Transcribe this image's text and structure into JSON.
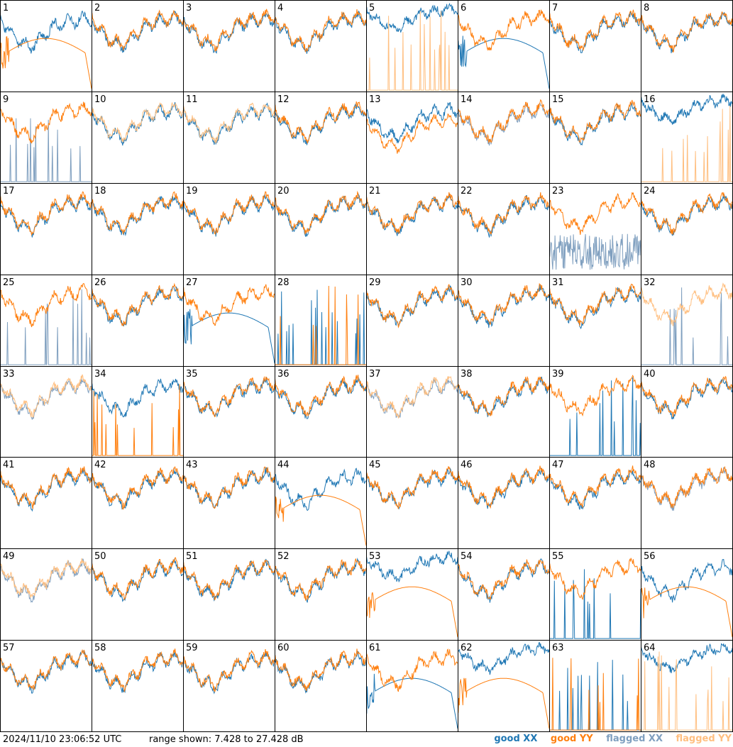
{
  "footer": {
    "timestamp": "2024/11/10 23:06:52 UTC",
    "range_text": "range shown: 7.428 to 27.428 dB"
  },
  "legend": [
    {
      "label": "good XX",
      "color": "#1f77b4"
    },
    {
      "label": "good YY",
      "color": "#ff7f0e"
    },
    {
      "label": "flagged XX",
      "color": "#7f9fbf"
    },
    {
      "label": "flagged YY",
      "color": "#ffbf80"
    }
  ],
  "chart_data": {
    "type": "line",
    "range_db": [
      7.428,
      27.428
    ],
    "grid": {
      "rows": 8,
      "cols": 8
    },
    "panels": [
      {
        "label": "1",
        "xx": "good",
        "yy": "good",
        "xx_shape": "normal",
        "yy_shape": "smooth_hump"
      },
      {
        "label": "2",
        "xx": "good",
        "yy": "good",
        "xx_shape": "normal",
        "yy_shape": "normal"
      },
      {
        "label": "3",
        "xx": "good",
        "yy": "good",
        "xx_shape": "normal",
        "yy_shape": "normal"
      },
      {
        "label": "4",
        "xx": "good",
        "yy": "good",
        "xx_shape": "normal",
        "yy_shape": "normal"
      },
      {
        "label": "5",
        "xx": "good",
        "yy": "flagged",
        "xx_shape": "high",
        "yy_shape": "spikes"
      },
      {
        "label": "6",
        "xx": "good",
        "yy": "good",
        "xx_shape": "smooth_hump",
        "yy_shape": "normal"
      },
      {
        "label": "7",
        "xx": "good",
        "yy": "good",
        "xx_shape": "normal",
        "yy_shape": "normal"
      },
      {
        "label": "8",
        "xx": "good",
        "yy": "good",
        "xx_shape": "normal",
        "yy_shape": "normal"
      },
      {
        "label": "9",
        "xx": "flagged",
        "yy": "good",
        "xx_shape": "spikes",
        "yy_shape": "normal"
      },
      {
        "label": "10",
        "xx": "good",
        "yy": "flagged",
        "xx_shape": "normal",
        "yy_shape": "normal"
      },
      {
        "label": "11",
        "xx": "good",
        "yy": "flagged",
        "xx_shape": "normal",
        "yy_shape": "normal"
      },
      {
        "label": "12",
        "xx": "good",
        "yy": "good",
        "xx_shape": "normal",
        "yy_shape": "normal"
      },
      {
        "label": "13",
        "xx": "good",
        "yy": "good",
        "xx_shape": "normal",
        "yy_shape": "low"
      },
      {
        "label": "14",
        "xx": "flagged",
        "yy": "good",
        "xx_shape": "normal",
        "yy_shape": "normal"
      },
      {
        "label": "15",
        "xx": "good",
        "yy": "good",
        "xx_shape": "normal",
        "yy_shape": "normal"
      },
      {
        "label": "16",
        "xx": "good",
        "yy": "flagged",
        "xx_shape": "high",
        "yy_shape": "spikes"
      },
      {
        "label": "17",
        "xx": "good",
        "yy": "good",
        "xx_shape": "normal",
        "yy_shape": "normal"
      },
      {
        "label": "18",
        "xx": "good",
        "yy": "good",
        "xx_shape": "normal",
        "yy_shape": "normal"
      },
      {
        "label": "19",
        "xx": "good",
        "yy": "good",
        "xx_shape": "normal",
        "yy_shape": "normal"
      },
      {
        "label": "20",
        "xx": "good",
        "yy": "good",
        "xx_shape": "normal",
        "yy_shape": "normal"
      },
      {
        "label": "21",
        "xx": "good",
        "yy": "good",
        "xx_shape": "normal",
        "yy_shape": "normal"
      },
      {
        "label": "22",
        "xx": "good",
        "yy": "good",
        "xx_shape": "normal",
        "yy_shape": "normal"
      },
      {
        "label": "23",
        "xx": "flagged",
        "yy": "good",
        "xx_shape": "noisy_low",
        "yy_shape": "normal"
      },
      {
        "label": "24",
        "xx": "good",
        "yy": "good",
        "xx_shape": "normal",
        "yy_shape": "normal"
      },
      {
        "label": "25",
        "xx": "flagged",
        "yy": "good",
        "xx_shape": "spikes",
        "yy_shape": "normal"
      },
      {
        "label": "26",
        "xx": "good",
        "yy": "good",
        "xx_shape": "normal",
        "yy_shape": "normal"
      },
      {
        "label": "27",
        "xx": "good",
        "yy": "good",
        "xx_shape": "smooth_hump",
        "yy_shape": "normal"
      },
      {
        "label": "28",
        "xx": "good",
        "yy": "good",
        "xx_shape": "spikes",
        "yy_shape": "spikes"
      },
      {
        "label": "29",
        "xx": "good",
        "yy": "good",
        "xx_shape": "normal",
        "yy_shape": "normal"
      },
      {
        "label": "30",
        "xx": "good",
        "yy": "good",
        "xx_shape": "normal",
        "yy_shape": "normal"
      },
      {
        "label": "31",
        "xx": "good",
        "yy": "good",
        "xx_shape": "normal",
        "yy_shape": "normal"
      },
      {
        "label": "32",
        "xx": "flagged",
        "yy": "flagged",
        "xx_shape": "spikes",
        "yy_shape": "normal"
      },
      {
        "label": "33",
        "xx": "flagged",
        "yy": "flagged",
        "xx_shape": "normal",
        "yy_shape": "normal"
      },
      {
        "label": "34",
        "xx": "good",
        "yy": "good",
        "xx_shape": "normal",
        "yy_shape": "spikes"
      },
      {
        "label": "35",
        "xx": "good",
        "yy": "good",
        "xx_shape": "normal",
        "yy_shape": "normal"
      },
      {
        "label": "36",
        "xx": "good",
        "yy": "good",
        "xx_shape": "normal",
        "yy_shape": "normal"
      },
      {
        "label": "37",
        "xx": "flagged",
        "yy": "flagged",
        "xx_shape": "normal",
        "yy_shape": "normal"
      },
      {
        "label": "38",
        "xx": "good",
        "yy": "good",
        "xx_shape": "normal",
        "yy_shape": "normal"
      },
      {
        "label": "39",
        "xx": "good",
        "yy": "good",
        "xx_shape": "spikes",
        "yy_shape": "normal"
      },
      {
        "label": "40",
        "xx": "good",
        "yy": "good",
        "xx_shape": "normal",
        "yy_shape": "normal"
      },
      {
        "label": "41",
        "xx": "good",
        "yy": "good",
        "xx_shape": "normal",
        "yy_shape": "normal"
      },
      {
        "label": "42",
        "xx": "good",
        "yy": "good",
        "xx_shape": "normal",
        "yy_shape": "normal"
      },
      {
        "label": "43",
        "xx": "good",
        "yy": "good",
        "xx_shape": "normal",
        "yy_shape": "normal"
      },
      {
        "label": "44",
        "xx": "good",
        "yy": "good",
        "xx_shape": "normal",
        "yy_shape": "smooth_hump"
      },
      {
        "label": "45",
        "xx": "good",
        "yy": "good",
        "xx_shape": "normal",
        "yy_shape": "normal"
      },
      {
        "label": "46",
        "xx": "good",
        "yy": "good",
        "xx_shape": "normal",
        "yy_shape": "normal"
      },
      {
        "label": "47",
        "xx": "good",
        "yy": "good",
        "xx_shape": "normal",
        "yy_shape": "normal"
      },
      {
        "label": "48",
        "xx": "flagged",
        "yy": "good",
        "xx_shape": "normal",
        "yy_shape": "normal"
      },
      {
        "label": "49",
        "xx": "flagged",
        "yy": "flagged",
        "xx_shape": "normal",
        "yy_shape": "normal"
      },
      {
        "label": "50",
        "xx": "good",
        "yy": "good",
        "xx_shape": "normal",
        "yy_shape": "normal"
      },
      {
        "label": "51",
        "xx": "good",
        "yy": "good",
        "xx_shape": "normal",
        "yy_shape": "normal"
      },
      {
        "label": "52",
        "xx": "good",
        "yy": "good",
        "xx_shape": "normal",
        "yy_shape": "normal"
      },
      {
        "label": "53",
        "xx": "good",
        "yy": "good",
        "xx_shape": "high",
        "yy_shape": "smooth_hump"
      },
      {
        "label": "54",
        "xx": "good",
        "yy": "good",
        "xx_shape": "normal",
        "yy_shape": "normal"
      },
      {
        "label": "55",
        "xx": "good",
        "yy": "good",
        "xx_shape": "spikes",
        "yy_shape": "normal"
      },
      {
        "label": "56",
        "xx": "good",
        "yy": "good",
        "xx_shape": "normal",
        "yy_shape": "smooth_hump"
      },
      {
        "label": "57",
        "xx": "good",
        "yy": "good",
        "xx_shape": "normal",
        "yy_shape": "normal"
      },
      {
        "label": "58",
        "xx": "good",
        "yy": "good",
        "xx_shape": "normal",
        "yy_shape": "normal"
      },
      {
        "label": "59",
        "xx": "good",
        "yy": "good",
        "xx_shape": "normal",
        "yy_shape": "normal"
      },
      {
        "label": "60",
        "xx": "good",
        "yy": "good",
        "xx_shape": "normal",
        "yy_shape": "normal"
      },
      {
        "label": "61",
        "xx": "good",
        "yy": "good",
        "xx_shape": "smooth_hump",
        "yy_shape": "normal"
      },
      {
        "label": "62",
        "xx": "good",
        "yy": "good",
        "xx_shape": "high",
        "yy_shape": "smooth_hump"
      },
      {
        "label": "63",
        "xx": "good",
        "yy": "good",
        "xx_shape": "spikes",
        "yy_shape": "spikes"
      },
      {
        "label": "64",
        "xx": "good",
        "yy": "flagged",
        "xx_shape": "high",
        "yy_shape": "spikes"
      }
    ]
  }
}
